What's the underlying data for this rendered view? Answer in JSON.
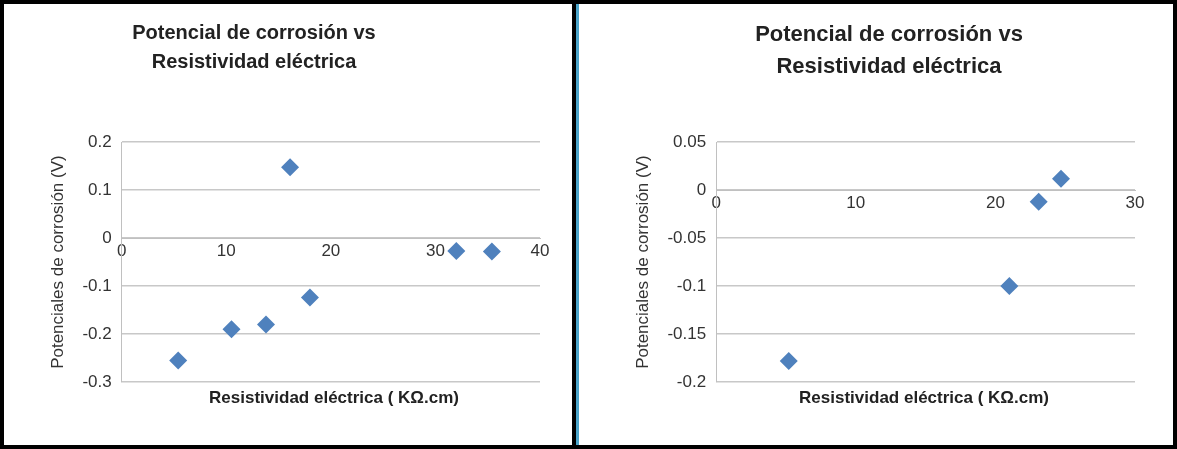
{
  "chart_data": [
    {
      "type": "scatter",
      "title": "Potencial de corrosión vs Resistividad eléctrica",
      "xlabel": "Resistividad  eléctrica ( KΩ.cm)",
      "ylabel": "Potenciales de corrosión (V)",
      "x": [
        5.4,
        10.5,
        13.8,
        16.1,
        18,
        32,
        35.4
      ],
      "series": [
        {
          "color": "#4f81bd",
          "values": [
            -0.255,
            -0.19,
            -0.18,
            0.148,
            -0.124,
            -0.027,
            -0.028
          ]
        }
      ],
      "xlim": [
        0,
        40
      ],
      "xticks": [
        0,
        10,
        20,
        30,
        40
      ],
      "ylim": [
        -0.3,
        0.2
      ],
      "yticks": [
        -0.3,
        -0.2,
        -0.1,
        0,
        0.1,
        0.2
      ],
      "grid": "y",
      "legend": false,
      "marker": "diamond"
    },
    {
      "type": "scatter",
      "title": "Potencial de corrosión vs Resistividad eléctrica",
      "xlabel": "Resistividad  eléctrica ( KΩ.cm)",
      "ylabel": "Potenciales de corrosión (V)",
      "x": [
        5.2,
        21,
        23.1,
        24.7
      ],
      "series": [
        {
          "color": "#4f81bd",
          "values": [
            -0.178,
            -0.1,
            -0.012,
            0.012
          ]
        }
      ],
      "xlim": [
        0,
        30
      ],
      "xticks": [
        0,
        10,
        20,
        30
      ],
      "ylim": [
        -0.2,
        0.05
      ],
      "yticks": [
        -0.2,
        -0.15,
        -0.1,
        -0.05,
        0,
        0.05
      ],
      "grid": "y",
      "legend": false,
      "marker": "diamond"
    }
  ]
}
